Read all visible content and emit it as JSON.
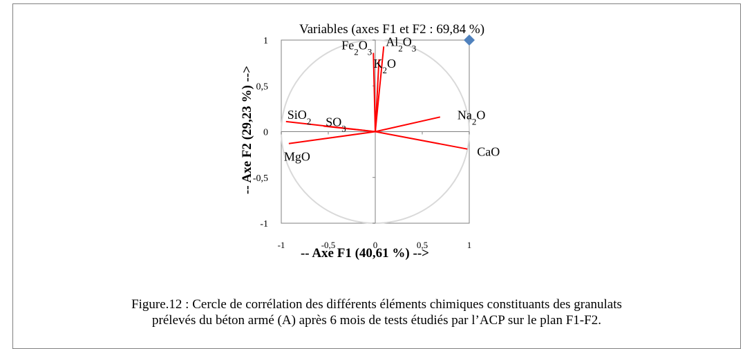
{
  "caption": {
    "line1": "Figure.12 : Cercle de corrélation des différents éléments chimiques constituants des granulats",
    "line2": "prélevés du béton armé (A) après 6 mois de tests étudiés par l’ACP sur le plan F1-F2."
  },
  "chart_data": {
    "type": "scatter",
    "title": "Variables (axes F1 et F2 : 69,84 %)",
    "xlabel": "-- Axe F1 (40,61 %) -->",
    "ylabel": "-- Axe F2 (29,23 %) -->",
    "xlim": [
      -1,
      1
    ],
    "ylim": [
      -1,
      1
    ],
    "x_ticks": [
      "-1",
      "-0,5",
      "0",
      "0,5",
      "1"
    ],
    "y_ticks": [
      "-1",
      "-0,5",
      "0",
      "0,5",
      "1"
    ],
    "correlation_circle": true,
    "vector_color": "#ff0000",
    "circle_color": "#d9d9d9",
    "marker_color": "#4f81bd",
    "variables": [
      {
        "label": "Fe2O3",
        "x": -0.02,
        "y": 0.86
      },
      {
        "label": "Al2O3",
        "x": 0.09,
        "y": 0.93
      },
      {
        "label": "K2O",
        "x": 0.04,
        "y": 0.79
      },
      {
        "label": "SiO2",
        "x": -0.95,
        "y": 0.11
      },
      {
        "label": "SO3",
        "x": -0.55,
        "y": 0.06
      },
      {
        "label": "Na2O",
        "x": 0.69,
        "y": 0.16
      },
      {
        "label": "MgO",
        "x": -0.92,
        "y": -0.13
      },
      {
        "label": "CaO",
        "x": 0.98,
        "y": -0.19
      }
    ],
    "points": [
      {
        "name": "",
        "x": 1.0,
        "y": 1.0
      }
    ]
  }
}
